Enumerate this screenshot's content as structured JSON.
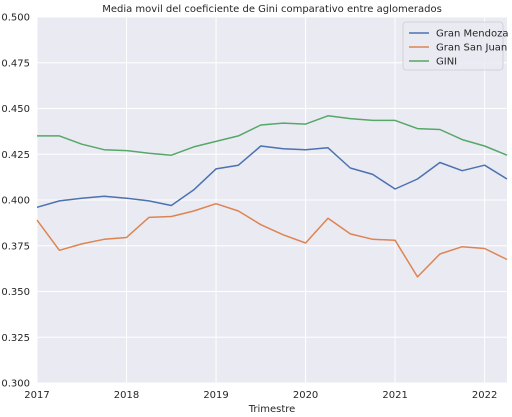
{
  "chart_data": {
    "type": "line",
    "title": "Media movil del coeficiente de Gini comparativo entre aglomerados",
    "xlabel": "Trimestre",
    "ylabel": "",
    "ylim": [
      0.3,
      0.5
    ],
    "xlim": [
      2017.0,
      2022.25
    ],
    "grid": true,
    "legend_position": "top-right",
    "background_color": "#eaeaf2",
    "grid_color": "#ffffff",
    "x_ticks": [
      2017,
      2018,
      2019,
      2020,
      2021,
      2022
    ],
    "x_tick_labels": [
      "2017",
      "2018",
      "2019",
      "2020",
      "2021",
      "2022"
    ],
    "y_ticks": [
      0.3,
      0.325,
      0.35,
      0.375,
      0.4,
      0.425,
      0.45,
      0.475,
      0.5
    ],
    "y_tick_labels": [
      "0.300",
      "0.325",
      "0.350",
      "0.375",
      "0.400",
      "0.425",
      "0.450",
      "0.475",
      "0.500"
    ],
    "x": [
      2017.0,
      2017.25,
      2017.5,
      2017.75,
      2018.0,
      2018.25,
      2018.5,
      2018.75,
      2019.0,
      2019.25,
      2019.5,
      2019.75,
      2020.0,
      2020.25,
      2020.5,
      2020.75,
      2021.0,
      2021.25,
      2021.5,
      2021.75,
      2022.0,
      2022.25
    ],
    "series": [
      {
        "name": "Gran Mendoza",
        "color": "#4c72b0",
        "values": [
          0.396,
          0.3995,
          0.401,
          0.402,
          0.401,
          0.3995,
          0.397,
          0.4055,
          0.417,
          0.419,
          0.4295,
          0.428,
          0.4275,
          0.4285,
          0.4175,
          0.414,
          0.406,
          0.4115,
          0.4205,
          0.416,
          0.419,
          0.4115
        ]
      },
      {
        "name": "Gran San Juan",
        "color": "#dd8452",
        "values": [
          0.389,
          0.3725,
          0.376,
          0.3785,
          0.3795,
          0.3905,
          0.391,
          0.394,
          0.398,
          0.394,
          0.3865,
          0.381,
          0.3765,
          0.39,
          0.3815,
          0.3785,
          0.378,
          0.358,
          0.3705,
          0.3745,
          0.3735,
          0.3675
        ]
      },
      {
        "name": "GINI",
        "color": "#55a868",
        "values": [
          0.435,
          0.435,
          0.4305,
          0.4275,
          0.427,
          0.4255,
          0.4245,
          0.429,
          0.432,
          0.435,
          0.441,
          0.442,
          0.4415,
          0.446,
          0.4445,
          0.4435,
          0.4435,
          0.439,
          0.4385,
          0.433,
          0.4295,
          0.4245
        ]
      }
    ]
  }
}
